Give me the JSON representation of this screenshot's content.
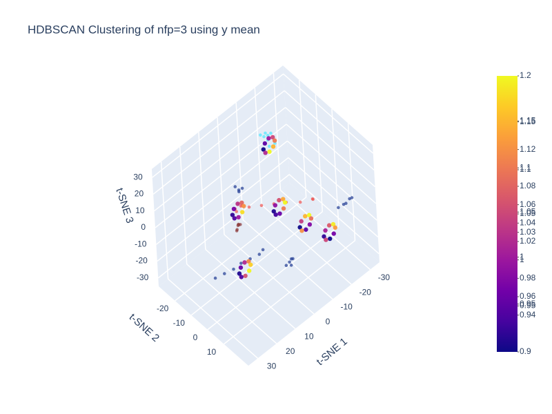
{
  "chart_data": {
    "type": "scatter3d",
    "title": "HDBSCAN Clustering of nfp=3 using y mean",
    "xlabel": "t-SNE 1",
    "ylabel": "t-SNE 2",
    "zlabel": "t-SNE 3",
    "xlim": [
      -35,
      35
    ],
    "ylim": [
      -30,
      25
    ],
    "zlim": [
      -35,
      35
    ],
    "xticks": [
      -30,
      -20,
      -10,
      0,
      10,
      20,
      30
    ],
    "yticks": [
      -20,
      -10,
      0,
      10
    ],
    "zticks": [
      -30,
      -20,
      -10,
      0,
      10,
      20,
      30
    ],
    "grid": true,
    "colorscale": [
      "#0d0887",
      "#46039f",
      "#7201a8",
      "#9c179e",
      "#bd3786",
      "#d8576b",
      "#ed7953",
      "#fb9f3a",
      "#fdca26",
      "#f0f921"
    ],
    "clim": [
      0.9,
      1.2
    ],
    "cticks": [
      1.2,
      {
        "value": 1.151,
        "label": "1.15"
      },
      1.15,
      1.12,
      1.1,
      {
        "value": 1.098,
        "label": "1.1"
      },
      1.08,
      1.06,
      1.05,
      {
        "value": 1.052,
        "label": "1.05"
      },
      1.04,
      1.03,
      1.02,
      1,
      {
        "value": 1.003,
        "label": "1"
      },
      0.98,
      0.96,
      0.95,
      {
        "value": 0.952,
        "label": "0.95"
      },
      0.94,
      0.9
    ],
    "series": [
      {
        "color": "#4fe8ff",
        "x": [
          -9,
          -11,
          -10,
          -8,
          -12,
          -9,
          -11,
          -13
        ],
        "y": [
          -12,
          -10,
          -11,
          -13,
          -9,
          -11,
          -12,
          -14
        ],
        "z": [
          31,
          33,
          29,
          32,
          27,
          34,
          30,
          20
        ]
      },
      {
        "color": "#ef5350",
        "x": [
          9,
          11,
          10,
          12,
          8,
          7,
          3,
          -1,
          -5,
          -9,
          -13,
          -14
        ],
        "y": [
          -6,
          -8,
          -7,
          -6,
          -8,
          -4,
          -1,
          2,
          5,
          9,
          12,
          11
        ],
        "z": [
          11,
          9,
          12,
          10,
          8,
          10,
          10,
          10,
          10,
          10,
          11,
          9
        ]
      },
      {
        "color": "#8b3a3a",
        "x": [
          13,
          12,
          14,
          13,
          12,
          14
        ],
        "y": [
          -4,
          -5,
          -3,
          -5,
          -4,
          -4
        ],
        "z": [
          5,
          3,
          6,
          1,
          4,
          2
        ]
      },
      {
        "color": "#1f3a93",
        "x": [
          7,
          6,
          8,
          7,
          -18,
          -20,
          -22,
          -24,
          -26,
          3,
          2,
          4,
          3,
          2,
          24,
          20,
          16,
          12,
          8,
          4,
          2
        ],
        "y": [
          -10,
          -9,
          -11,
          -10,
          22,
          23,
          22,
          22,
          21,
          15,
          16,
          14,
          16,
          15,
          -7,
          -6,
          -5,
          -5,
          -4,
          -3,
          -3
        ],
        "z": [
          15,
          16,
          17,
          14,
          10,
          11,
          9,
          10,
          8,
          -10,
          -8,
          -12,
          -11,
          -9,
          -20,
          -20,
          -20,
          -20,
          -20,
          -20,
          -19
        ]
      },
      {
        "x": [
          -6.3,
          -7.2,
          -9.3,
          -11.4,
          -12.3,
          -11.4,
          -9.3,
          -7.2,
          13.2,
          12.3,
          10.2,
          8.1,
          7.2,
          8.1,
          10.2,
          12.3,
          1.4,
          0.5,
          -1.6,
          -3.7,
          -4.6,
          -3.7,
          -1.6,
          0.5,
          -3.4,
          -4.3,
          -6.4,
          -8.5,
          -9.4,
          -8.5,
          -6.4,
          -4.3,
          -9.8,
          -10.7,
          -12.8,
          -14.9,
          -15.8,
          -14.9,
          -12.8,
          -10.7,
          18.3,
          17.4,
          15.3,
          13.2,
          12.3,
          13.2,
          15.3,
          17.4
        ],
        "y": [
          -9.4,
          -9.4,
          -9.4,
          -9.4,
          -9.4,
          -9.4,
          -9.4,
          -9.4,
          -7.2,
          -7.2,
          -7.2,
          -7.2,
          -7.2,
          -7.2,
          -7.2,
          -7.2,
          4.7,
          4.7,
          4.7,
          4.7,
          4.7,
          4.7,
          4.7,
          4.7,
          14.9,
          14.9,
          14.9,
          14.9,
          14.9,
          14.9,
          14.9,
          14.9,
          22,
          22,
          22,
          22,
          22,
          22,
          22,
          22,
          1.5,
          1.5,
          1.5,
          1.5,
          1.5,
          1.5,
          1.5,
          1.5
        ],
        "z": [
          28,
          30.8,
          32,
          30.8,
          28,
          25.2,
          24,
          25.2,
          8,
          10.8,
          12,
          10.8,
          8,
          5.2,
          4,
          5.2,
          10,
          12.8,
          14,
          12.8,
          10,
          7.2,
          6,
          7.2,
          5,
          7.8,
          9,
          7.8,
          5,
          2.2,
          1,
          2.2,
          0,
          2.8,
          4,
          2.8,
          0,
          -2.8,
          -4,
          -2.8,
          -15,
          -12.2,
          -11,
          -12.2,
          -15,
          -17.8,
          -19,
          -17.8
        ],
        "values": [
          0.9,
          0.95,
          1.0,
          1.05,
          1.1,
          1.15,
          1.2,
          1.02,
          0.92,
          0.97,
          1.03,
          1.08,
          1.12,
          1.18,
          1.0,
          0.94,
          0.91,
          0.99,
          1.06,
          1.14,
          1.2,
          1.1,
          0.96,
          0.93,
          0.9,
          1.04,
          1.15,
          1.2,
          1.09,
          0.98,
          0.95,
          1.12,
          0.92,
          1.01,
          1.07,
          1.19,
          1.13,
          0.97,
          0.9,
          1.05,
          0.91,
          0.96,
          1.02,
          1.11,
          1.17,
          1.2,
          1.06,
          0.94
        ]
      }
    ]
  }
}
